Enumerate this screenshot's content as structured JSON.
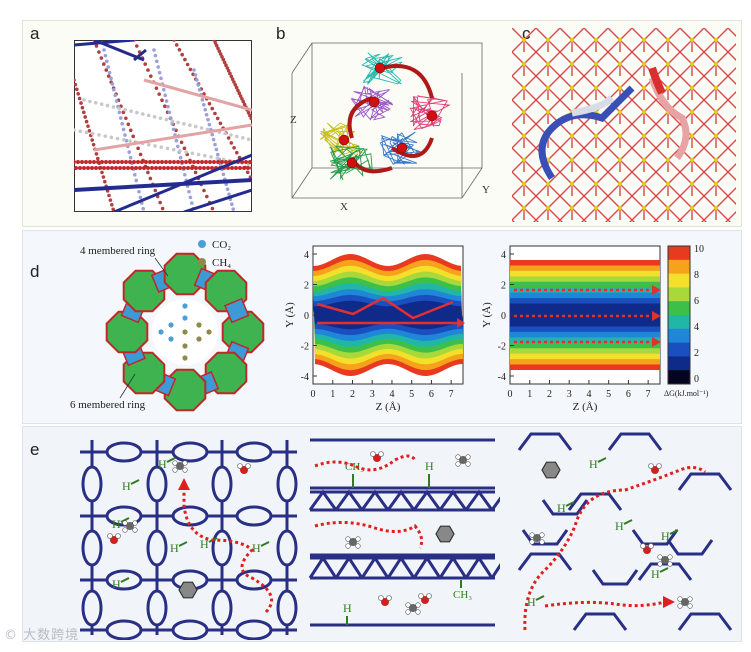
{
  "panels": {
    "a": {
      "label": "a"
    },
    "b": {
      "label": "b",
      "axes": {
        "x": "X",
        "y": "Y",
        "z": "Z"
      }
    },
    "c": {
      "label": "c"
    },
    "d": {
      "label": "d",
      "ring_labels": {
        "four": "4 membered ring",
        "six": "6 membered ring"
      },
      "legend": {
        "co2": "CO₂",
        "ch4": "CH₄"
      },
      "plot_axes": {
        "x_label": "Z (Å)",
        "y_label": "Y (Å)",
        "x_ticks": [
          "0",
          "1",
          "2",
          "3",
          "4",
          "5",
          "6",
          "7"
        ],
        "y_ticks": [
          "4",
          "2",
          "0",
          "-2",
          "-4"
        ]
      },
      "colorbar": {
        "ticks": [
          "10",
          "8",
          "6",
          "4",
          "2",
          "0"
        ],
        "label": "ΔG(kJ.mol⁻¹)"
      },
      "colors": {
        "co2": "#4a9fd8",
        "ch4": "#8f8a4a",
        "ring_six": "#3fb34f",
        "ring_four": "#3d9ad6"
      }
    },
    "e": {
      "label": "e",
      "h_label": "H",
      "methyl_label": "CH₃",
      "colors": {
        "framework": "#2a2f86",
        "path": "#e02020",
        "h": "#2f7d1e"
      }
    }
  },
  "watermark": "© 大数跨境"
}
